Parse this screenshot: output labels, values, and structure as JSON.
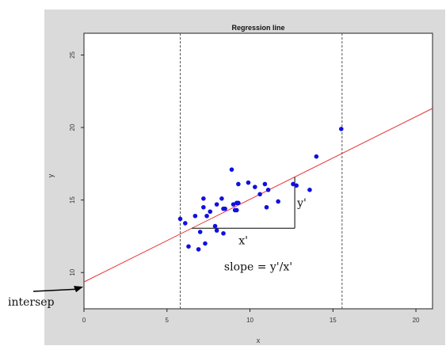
{
  "chart_data": {
    "type": "scatter",
    "title": "Regression line",
    "xlabel": "x",
    "ylabel": "y",
    "xlim": [
      0,
      21
    ],
    "ylim": [
      7.5,
      26.5
    ],
    "x_ticks": [
      0,
      5,
      10,
      15,
      20
    ],
    "y_ticks": [
      10,
      15,
      20,
      25
    ],
    "grid": false,
    "points": [
      {
        "x": 5.8,
        "y": 13.7
      },
      {
        "x": 6.1,
        "y": 13.4
      },
      {
        "x": 6.3,
        "y": 11.8
      },
      {
        "x": 6.7,
        "y": 13.9
      },
      {
        "x": 6.9,
        "y": 11.6
      },
      {
        "x": 7.0,
        "y": 12.8
      },
      {
        "x": 7.2,
        "y": 14.5
      },
      {
        "x": 7.2,
        "y": 15.1
      },
      {
        "x": 7.3,
        "y": 12.0
      },
      {
        "x": 7.4,
        "y": 13.9
      },
      {
        "x": 7.6,
        "y": 14.2
      },
      {
        "x": 7.9,
        "y": 13.2
      },
      {
        "x": 8.0,
        "y": 14.7
      },
      {
        "x": 8.0,
        "y": 12.9
      },
      {
        "x": 8.3,
        "y": 15.1
      },
      {
        "x": 8.4,
        "y": 14.4
      },
      {
        "x": 8.4,
        "y": 12.7
      },
      {
        "x": 8.5,
        "y": 14.4
      },
      {
        "x": 8.9,
        "y": 17.1
      },
      {
        "x": 9.0,
        "y": 14.7
      },
      {
        "x": 9.1,
        "y": 14.3
      },
      {
        "x": 9.2,
        "y": 14.3
      },
      {
        "x": 9.2,
        "y": 14.8
      },
      {
        "x": 9.3,
        "y": 16.1
      },
      {
        "x": 9.3,
        "y": 14.8
      },
      {
        "x": 9.9,
        "y": 16.2
      },
      {
        "x": 10.3,
        "y": 15.9
      },
      {
        "x": 10.6,
        "y": 15.4
      },
      {
        "x": 10.9,
        "y": 16.1
      },
      {
        "x": 11.0,
        "y": 14.5
      },
      {
        "x": 11.1,
        "y": 15.7
      },
      {
        "x": 11.7,
        "y": 14.9
      },
      {
        "x": 12.6,
        "y": 16.1
      },
      {
        "x": 12.8,
        "y": 16.0
      },
      {
        "x": 13.6,
        "y": 15.7
      },
      {
        "x": 14.0,
        "y": 18.0
      },
      {
        "x": 15.5,
        "y": 19.9
      }
    ],
    "regression": {
      "intercept": 9.35,
      "slope": 0.57
    },
    "vlines": [
      5.8,
      15.55
    ],
    "slope_triangle": {
      "x0": 6.5,
      "x1": 12.7
    },
    "annotations": {
      "x_prime": "x'",
      "y_prime": "y'",
      "slope_text": "slope = y'/x'",
      "intercept_text": "intersep"
    },
    "colors": {
      "points": "#1010e0",
      "regression": "#e83030",
      "vlines": "#555555",
      "background": "#dadada",
      "plot": "#ffffff"
    }
  }
}
